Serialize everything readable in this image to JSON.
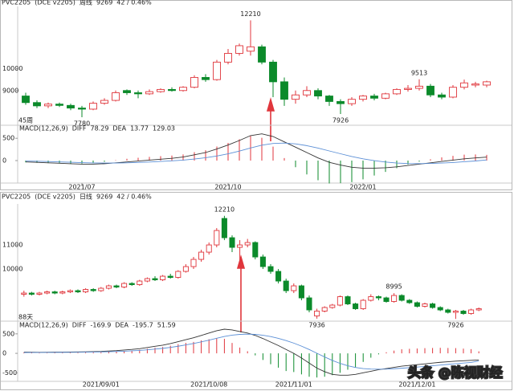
{
  "chart_data": [
    {
      "type": "candlestick",
      "symbol": "PVC2205",
      "exchange": "(DCE v2205)",
      "period": "周线",
      "last": 9269,
      "change": "42 / 0.46%",
      "count_label": "45周",
      "up_color": "#e0363c",
      "down_color": "#0b8a2a",
      "open": [
        8750,
        8450,
        8300,
        8380,
        8320,
        8200,
        8150,
        8420,
        8550,
        9000,
        8900,
        8850,
        8950,
        9050,
        9000,
        9150,
        9600,
        9500,
        10300,
        10700,
        10800,
        11000,
        10300,
        9400,
        8600,
        8800,
        9000,
        8750,
        8500,
        8400,
        8600,
        8750,
        8650,
        8850,
        9050,
        9100,
        9200,
        8800,
        8700,
        9150,
        9250,
        9250
      ],
      "close": [
        8450,
        8300,
        8380,
        8320,
        8200,
        8150,
        8420,
        8550,
        8900,
        8900,
        8850,
        8950,
        9050,
        9000,
        9150,
        9600,
        9500,
        10300,
        10700,
        11050,
        11000,
        10300,
        9400,
        8600,
        8800,
        9000,
        8750,
        8500,
        8400,
        8600,
        8750,
        8650,
        8850,
        9050,
        9100,
        9200,
        8800,
        8700,
        9150,
        9350,
        9300,
        9400
      ],
      "high": [
        8900,
        8550,
        8450,
        8450,
        8400,
        8300,
        8500,
        8650,
        9000,
        9050,
        9000,
        9050,
        9100,
        9150,
        9200,
        9700,
        9750,
        10400,
        10900,
        11150,
        12210,
        11100,
        10400,
        9600,
        9000,
        9200,
        9100,
        8800,
        8600,
        8700,
        8800,
        8850,
        8900,
        9100,
        9250,
        9513,
        9300,
        8900,
        9250,
        9500,
        9400,
        9450
      ],
      "low": [
        8350,
        8200,
        8200,
        8250,
        8100,
        7780,
        8100,
        8350,
        8500,
        8800,
        8650,
        8800,
        8900,
        8950,
        8950,
        9100,
        9400,
        9450,
        10200,
        10600,
        10600,
        10200,
        8700,
        8300,
        8400,
        8700,
        8600,
        8300,
        7926,
        8300,
        8500,
        8550,
        8600,
        8800,
        8950,
        9000,
        8700,
        8600,
        8650,
        9050,
        9150,
        9150
      ],
      "annotations": [
        {
          "x": 20,
          "value": 12210
        },
        {
          "x": 5,
          "value": 7780
        },
        {
          "x": 28,
          "value": 7926
        },
        {
          "x": 35,
          "value": 9513
        }
      ],
      "ylim": [
        7450,
        12700
      ],
      "yticks": [
        9000,
        10000
      ],
      "xlim": [
        0,
        42
      ],
      "xticks": [
        {
          "value": 5,
          "label": "2021/07"
        },
        {
          "value": 18,
          "label": "2021/10"
        },
        {
          "value": 30,
          "label": "2022/01"
        }
      ],
      "macd": {
        "title": "MACD(12,26,9)",
        "diff_name": "DIFF",
        "diff_value": 78.29,
        "dea_name": "DEA",
        "dea_value": 13.77,
        "macd_value": 129.03,
        "diff_color": "#333333",
        "dea_color": "#5b8fd6",
        "ylim": [
          -540,
          720
        ],
        "yticks": [
          0,
          500
        ],
        "diff": [
          -30,
          -40,
          -50,
          -60,
          -70,
          -80,
          -80,
          -70,
          -50,
          -30,
          -10,
          10,
          30,
          50,
          80,
          130,
          180,
          260,
          350,
          450,
          560,
          600,
          540,
          420,
          300,
          180,
          60,
          -40,
          -100,
          -150,
          -170,
          -170,
          -160,
          -140,
          -110,
          -80,
          -50,
          -20,
          10,
          40,
          60,
          78.29
        ],
        "dea": [
          -10,
          -15,
          -22,
          -30,
          -38,
          -46,
          -53,
          -56,
          -55,
          -50,
          -42,
          -32,
          -20,
          -6,
          11,
          35,
          64,
          103,
          152,
          212,
          282,
          345,
          384,
          392,
          374,
          335,
          280,
          216,
          153,
          92,
          40,
          -2,
          -33,
          -55,
          -66,
          -69,
          -65,
          -56,
          -43,
          -26,
          -9,
          13.77
        ],
        "hist": [
          -40,
          -50,
          -56,
          -60,
          -64,
          -68,
          -54,
          -28,
          10,
          40,
          64,
          84,
          100,
          112,
          138,
          190,
          232,
          314,
          396,
          476,
          556,
          510,
          312,
          56,
          -148,
          -310,
          -440,
          -512,
          -506,
          -484,
          -420,
          -336,
          -254,
          -170,
          -88,
          -22,
          30,
          72,
          106,
          132,
          138,
          129.03
        ]
      }
    },
    {
      "type": "candlestick",
      "symbol": "PVC2205",
      "exchange": "(DCE v2205)",
      "period": "日线",
      "last": 9269,
      "change": "42 / 0.46%",
      "count_label": "88天",
      "up_color": "#e0363c",
      "down_color": "#0b8a2a",
      "open": [
        8950,
        9000,
        8950,
        9000,
        9050,
        9000,
        9050,
        9100,
        9050,
        9150,
        9100,
        9200,
        9300,
        9250,
        9400,
        9350,
        9500,
        9600,
        9550,
        9700,
        9650,
        9900,
        10100,
        10400,
        10700,
        11000,
        12100,
        11300,
        10900,
        11000,
        11100,
        10500,
        10100,
        9900,
        9500,
        9100,
        9300,
        8800,
        8050,
        8250,
        8400,
        8500,
        8850,
        8550,
        8350,
        8700,
        8850,
        8800,
        8650,
        8900,
        8700,
        8600,
        8450,
        8550,
        8400,
        8300,
        8200,
        8250,
        8150,
        8300
      ],
      "close": [
        9000,
        8950,
        9000,
        9050,
        9000,
        9050,
        9100,
        9050,
        9150,
        9100,
        9200,
        9300,
        9250,
        9400,
        9350,
        9500,
        9600,
        9550,
        9700,
        9650,
        9900,
        10100,
        10400,
        10700,
        11000,
        11600,
        11300,
        10900,
        11000,
        11100,
        10500,
        10100,
        9900,
        9500,
        9100,
        9300,
        8800,
        8300,
        8250,
        8400,
        8500,
        8850,
        8550,
        8350,
        8700,
        8850,
        8800,
        8650,
        8900,
        8700,
        8600,
        8450,
        8550,
        8400,
        8300,
        8200,
        8250,
        8150,
        8300,
        8350
      ],
      "high": [
        9100,
        9050,
        9050,
        9100,
        9100,
        9100,
        9150,
        9150,
        9200,
        9200,
        9250,
        9350,
        9350,
        9450,
        9450,
        9550,
        9650,
        9700,
        9750,
        9800,
        9950,
        10200,
        10500,
        10800,
        11100,
        11700,
        12210,
        11400,
        11200,
        11250,
        11150,
        10600,
        10200,
        10000,
        9600,
        9400,
        9350,
        8900,
        8350,
        8450,
        8550,
        8900,
        8900,
        8600,
        8750,
        8950,
        8900,
        8850,
        8995,
        8950,
        8750,
        8650,
        8600,
        8600,
        8450,
        8350,
        8300,
        8300,
        8350,
        8400
      ],
      "low": [
        8850,
        8900,
        8900,
        8950,
        8950,
        8950,
        9000,
        9000,
        9000,
        9050,
        9050,
        9150,
        9200,
        9200,
        9300,
        9300,
        9450,
        9500,
        9500,
        9600,
        9600,
        9850,
        10000,
        10300,
        10600,
        10900,
        11200,
        10700,
        10200,
        10900,
        10400,
        10000,
        9800,
        9400,
        9000,
        9000,
        8700,
        8200,
        7936,
        8200,
        8350,
        8450,
        8500,
        8300,
        8300,
        8650,
        8700,
        8600,
        8600,
        8650,
        8550,
        8400,
        8400,
        8350,
        8250,
        8150,
        7926,
        8100,
        8100,
        8250
      ],
      "annotations": [
        {
          "x": 26,
          "value": 12210
        },
        {
          "x": 38,
          "value": 7936
        },
        {
          "x": 48,
          "value": 8995
        },
        {
          "x": 56,
          "value": 7926
        }
      ],
      "ylim": [
        7900,
        12570
      ],
      "yticks": [
        10000,
        11000
      ],
      "xlim": [
        0,
        60
      ],
      "xticks": [
        {
          "value": 10,
          "label": "2021/09/01"
        },
        {
          "value": 24,
          "label": "2021/10/08"
        },
        {
          "value": 35,
          "label": "2021/11/01"
        },
        {
          "value": 51,
          "label": "2021/12/01"
        }
      ],
      "macd": {
        "title": "MACD(12,26,9)",
        "diff_name": "DIFF",
        "diff_value": -169.9,
        "dea_name": "DEA",
        "dea_value": -195.7,
        "macd_value": 51.59,
        "diff_color": "#333333",
        "dea_color": "#5b8fd6",
        "ylim": [
          -740,
          620
        ],
        "yticks": [
          -500,
          0,
          500
        ],
        "diff": [
          30,
          28,
          27,
          28,
          30,
          32,
          34,
          36,
          40,
          45,
          50,
          60,
          70,
          85,
          100,
          120,
          150,
          180,
          210,
          250,
          300,
          350,
          400,
          460,
          520,
          580,
          620,
          600,
          560,
          520,
          460,
          380,
          290,
          200,
          100,
          0,
          -120,
          -250,
          -380,
          -470,
          -540,
          -560,
          -560,
          -540,
          -500,
          -460,
          -420,
          -390,
          -360,
          -330,
          -310,
          -290,
          -270,
          -250,
          -230,
          -215,
          -200,
          -190,
          -180,
          -169.9
        ],
        "dea": [
          20,
          21,
          22,
          23,
          24,
          25,
          27,
          29,
          31,
          34,
          37,
          42,
          48,
          55,
          64,
          75,
          90,
          108,
          128,
          152,
          182,
          216,
          253,
          294,
          339,
          387,
          434,
          467,
          486,
          493,
          486,
          465,
          430,
          384,
          327,
          262,
          185,
          98,
          2,
          -92,
          -182,
          -258,
          -318,
          -362,
          -390,
          -404,
          -407,
          -404,
          -395,
          -382,
          -368,
          -352,
          -336,
          -319,
          -301,
          -284,
          -267,
          -250,
          -234,
          -195.7
        ],
        "hist": [
          20,
          14,
          10,
          10,
          12,
          14,
          14,
          14,
          18,
          22,
          26,
          36,
          44,
          60,
          72,
          90,
          120,
          144,
          164,
          196,
          236,
          268,
          294,
          332,
          362,
          386,
          372,
          266,
          148,
          54,
          -52,
          -170,
          -280,
          -368,
          -454,
          -480,
          -540,
          -600,
          -620,
          -600,
          -560,
          -500,
          -420,
          -356,
          -220,
          -112,
          -26,
          28,
          70,
          104,
          116,
          124,
          132,
          138,
          142,
          138,
          134,
          120,
          108,
          51.59
        ]
      }
    }
  ],
  "watermark": "头条 @陈视财经"
}
